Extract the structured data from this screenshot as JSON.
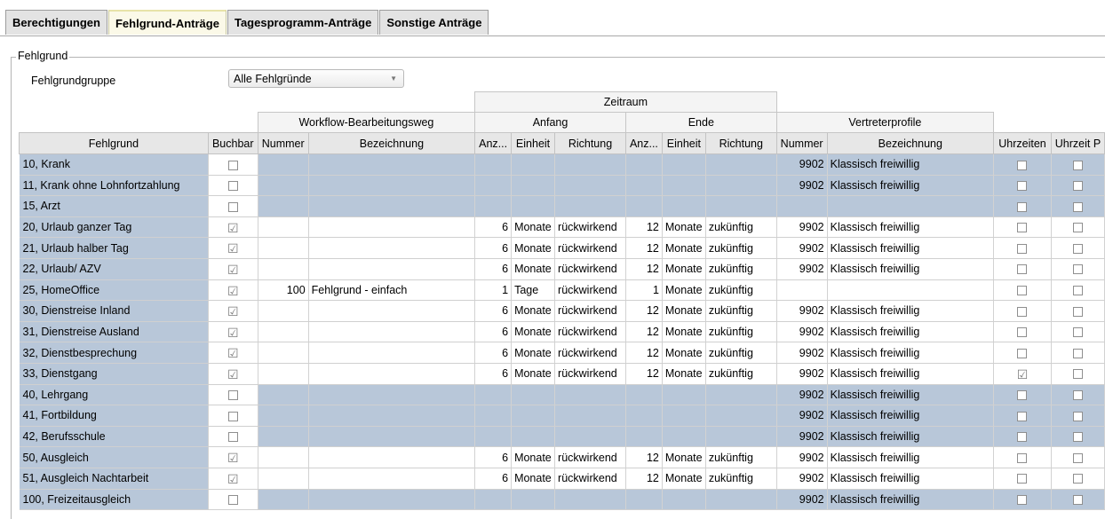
{
  "tabs": [
    "Berechtigungen",
    "Fehlgrund-Anträge",
    "Tagesprogramm-Anträge",
    "Sonstige Anträge"
  ],
  "group_title": "Fehlgrund",
  "fehlgrundgruppe_label": "Fehlgrundgruppe",
  "fehlgrundgruppe_value": "Alle Fehlgründe",
  "headers": {
    "zeitraum": "Zeitraum",
    "workflow": "Workflow-Bearbeitungsweg",
    "anfang": "Anfang",
    "ende": "Ende",
    "vertreter": "Vertreterprofile"
  },
  "columns": [
    "Fehlgrund",
    "Buchbar",
    "Nummer",
    "Bezeichnung",
    "Anz...",
    "Einheit",
    "Richtung",
    "Anz...",
    "Einheit",
    "Richtung",
    "Nummer",
    "Bezeichnung",
    "Uhrzeiten",
    "Uhrzeit P"
  ],
  "rows": [
    {
      "name": "10, Krank",
      "buchbar": false,
      "wnum": "",
      "wbez": "",
      "aanz": "",
      "aein": "",
      "arich": "",
      "eanz": "",
      "eein": "",
      "erich": "",
      "vnum": "9902",
      "vbez": "Klassisch freiwillig",
      "uhr": false,
      "uhrp": false,
      "style": "blue"
    },
    {
      "name": "11, Krank ohne Lohnfortzahlung",
      "buchbar": false,
      "wnum": "",
      "wbez": "",
      "aanz": "",
      "aein": "",
      "arich": "",
      "eanz": "",
      "eein": "",
      "erich": "",
      "vnum": "9902",
      "vbez": "Klassisch freiwillig",
      "uhr": false,
      "uhrp": false,
      "style": "blue"
    },
    {
      "name": "15, Arzt",
      "buchbar": false,
      "wnum": "",
      "wbez": "",
      "aanz": "",
      "aein": "",
      "arich": "",
      "eanz": "",
      "eein": "",
      "erich": "",
      "vnum": "",
      "vbez": "",
      "uhr": false,
      "uhrp": false,
      "style": "blue"
    },
    {
      "name": "20, Urlaub ganzer Tag",
      "buchbar": true,
      "wnum": "",
      "wbez": "",
      "aanz": "6",
      "aein": "Monate",
      "arich": "rückwirkend",
      "eanz": "12",
      "eein": "Monate",
      "erich": "zukünftig",
      "vnum": "9902",
      "vbez": "Klassisch freiwillig",
      "uhr": false,
      "uhrp": false,
      "style": "white"
    },
    {
      "name": "21, Urlaub halber Tag",
      "buchbar": true,
      "wnum": "",
      "wbez": "",
      "aanz": "6",
      "aein": "Monate",
      "arich": "rückwirkend",
      "eanz": "12",
      "eein": "Monate",
      "erich": "zukünftig",
      "vnum": "9902",
      "vbez": "Klassisch freiwillig",
      "uhr": false,
      "uhrp": false,
      "style": "white"
    },
    {
      "name": "22, Urlaub/ AZV",
      "buchbar": true,
      "wnum": "",
      "wbez": "",
      "aanz": "6",
      "aein": "Monate",
      "arich": "rückwirkend",
      "eanz": "12",
      "eein": "Monate",
      "erich": "zukünftig",
      "vnum": "9902",
      "vbez": "Klassisch freiwillig",
      "uhr": false,
      "uhrp": false,
      "style": "white"
    },
    {
      "name": "25, HomeOffice",
      "buchbar": true,
      "wnum": "100",
      "wbez": "Fehlgrund - einfach",
      "aanz": "1",
      "aein": "Tage",
      "arich": "rückwirkend",
      "eanz": "1",
      "eein": "Monate",
      "erich": "zukünftig",
      "vnum": "",
      "vbez": "",
      "uhr": false,
      "uhrp": false,
      "style": "white"
    },
    {
      "name": "30, Dienstreise Inland",
      "buchbar": true,
      "wnum": "",
      "wbez": "",
      "aanz": "6",
      "aein": "Monate",
      "arich": "rückwirkend",
      "eanz": "12",
      "eein": "Monate",
      "erich": "zukünftig",
      "vnum": "9902",
      "vbez": "Klassisch freiwillig",
      "uhr": false,
      "uhrp": false,
      "style": "white"
    },
    {
      "name": "31, Dienstreise Ausland",
      "buchbar": true,
      "wnum": "",
      "wbez": "",
      "aanz": "6",
      "aein": "Monate",
      "arich": "rückwirkend",
      "eanz": "12",
      "eein": "Monate",
      "erich": "zukünftig",
      "vnum": "9902",
      "vbez": "Klassisch freiwillig",
      "uhr": false,
      "uhrp": false,
      "style": "white"
    },
    {
      "name": "32, Dienstbesprechung",
      "buchbar": true,
      "wnum": "",
      "wbez": "",
      "aanz": "6",
      "aein": "Monate",
      "arich": "rückwirkend",
      "eanz": "12",
      "eein": "Monate",
      "erich": "zukünftig",
      "vnum": "9902",
      "vbez": "Klassisch freiwillig",
      "uhr": false,
      "uhrp": false,
      "style": "white"
    },
    {
      "name": "33, Dienstgang",
      "buchbar": true,
      "wnum": "",
      "wbez": "",
      "aanz": "6",
      "aein": "Monate",
      "arich": "rückwirkend",
      "eanz": "12",
      "eein": "Monate",
      "erich": "zukünftig",
      "vnum": "9902",
      "vbez": "Klassisch freiwillig",
      "uhr": true,
      "uhrp": false,
      "style": "white"
    },
    {
      "name": "40, Lehrgang",
      "buchbar": false,
      "wnum": "",
      "wbez": "",
      "aanz": "",
      "aein": "",
      "arich": "",
      "eanz": "",
      "eein": "",
      "erich": "",
      "vnum": "9902",
      "vbez": "Klassisch freiwillig",
      "uhr": false,
      "uhrp": false,
      "style": "blue"
    },
    {
      "name": "41, Fortbildung",
      "buchbar": false,
      "wnum": "",
      "wbez": "",
      "aanz": "",
      "aein": "",
      "arich": "",
      "eanz": "",
      "eein": "",
      "erich": "",
      "vnum": "9902",
      "vbez": "Klassisch freiwillig",
      "uhr": false,
      "uhrp": false,
      "style": "blue"
    },
    {
      "name": "42, Berufsschule",
      "buchbar": false,
      "wnum": "",
      "wbez": "",
      "aanz": "",
      "aein": "",
      "arich": "",
      "eanz": "",
      "eein": "",
      "erich": "",
      "vnum": "9902",
      "vbez": "Klassisch freiwillig",
      "uhr": false,
      "uhrp": false,
      "style": "blue"
    },
    {
      "name": "50, Ausgleich",
      "buchbar": true,
      "wnum": "",
      "wbez": "",
      "aanz": "6",
      "aein": "Monate",
      "arich": "rückwirkend",
      "eanz": "12",
      "eein": "Monate",
      "erich": "zukünftig",
      "vnum": "9902",
      "vbez": "Klassisch freiwillig",
      "uhr": false,
      "uhrp": false,
      "style": "white"
    },
    {
      "name": "51, Ausgleich Nachtarbeit",
      "buchbar": true,
      "wnum": "",
      "wbez": "",
      "aanz": "6",
      "aein": "Monate",
      "arich": "rückwirkend",
      "eanz": "12",
      "eein": "Monate",
      "erich": "zukünftig",
      "vnum": "9902",
      "vbez": "Klassisch freiwillig",
      "uhr": false,
      "uhrp": false,
      "style": "white"
    },
    {
      "name": "100, Freizeitausgleich",
      "buchbar": false,
      "wnum": "",
      "wbez": "",
      "aanz": "",
      "aein": "",
      "arich": "",
      "eanz": "",
      "eein": "",
      "erich": "",
      "vnum": "9902",
      "vbez": "Klassisch freiwillig",
      "uhr": false,
      "uhrp": false,
      "style": "blue"
    }
  ],
  "colors": {
    "disabled_row": "#b8c7d9",
    "active_tab": "#fbf9e8"
  },
  "icons": {
    "checked": "check-icon",
    "unchecked": "empty-checkbox-icon",
    "dropdown": "chevron-down-icon"
  }
}
